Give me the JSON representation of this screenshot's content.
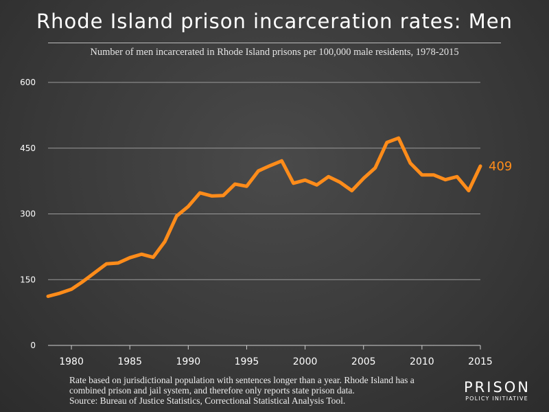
{
  "chart_data": {
    "type": "line",
    "title": "Rhode Island prison incarceration rates: Men",
    "subtitle": "Number of men incarcerated in Rhode Island prisons per 100,000 male residents, 1978-2015",
    "xlabel": "",
    "ylabel": "",
    "xlim": [
      1978,
      2015
    ],
    "ylim": [
      0,
      600
    ],
    "x_ticks": [
      1980,
      1985,
      1990,
      1995,
      2000,
      2005,
      2010,
      2015
    ],
    "y_ticks": [
      0,
      150,
      300,
      450,
      600
    ],
    "grid": true,
    "series": [
      {
        "color": "#ff8c1a",
        "x": [
          1978,
          1979,
          1980,
          1981,
          1982,
          1983,
          1984,
          1985,
          1986,
          1987,
          1988,
          1989,
          1990,
          1991,
          1992,
          1993,
          1994,
          1995,
          1996,
          1997,
          1998,
          1999,
          2000,
          2001,
          2002,
          2003,
          2004,
          2005,
          2006,
          2007,
          2008,
          2009,
          2010,
          2011,
          2012,
          2013,
          2014,
          2015
        ],
        "values": [
          112,
          119,
          128,
          146,
          166,
          186,
          188,
          200,
          208,
          201,
          237,
          295,
          317,
          348,
          341,
          342,
          368,
          363,
          398,
          410,
          421,
          370,
          377,
          366,
          385,
          372,
          353,
          381,
          405,
          463,
          473,
          416,
          389,
          389,
          378,
          385,
          353,
          409
        ]
      }
    ],
    "end_label": "409"
  },
  "footnote": {
    "line1": "Rate based on jurisdictional population with sentences longer than a year. Rhode Island has a",
    "line2": "combined prison and jail system, and therefore only reports state prison data.",
    "line3": "Source: Bureau of Justice Statistics, Correctional Statistical Analysis Tool."
  },
  "logo": {
    "main": "PRISON",
    "sub": "POLICY INITIATIVE"
  }
}
